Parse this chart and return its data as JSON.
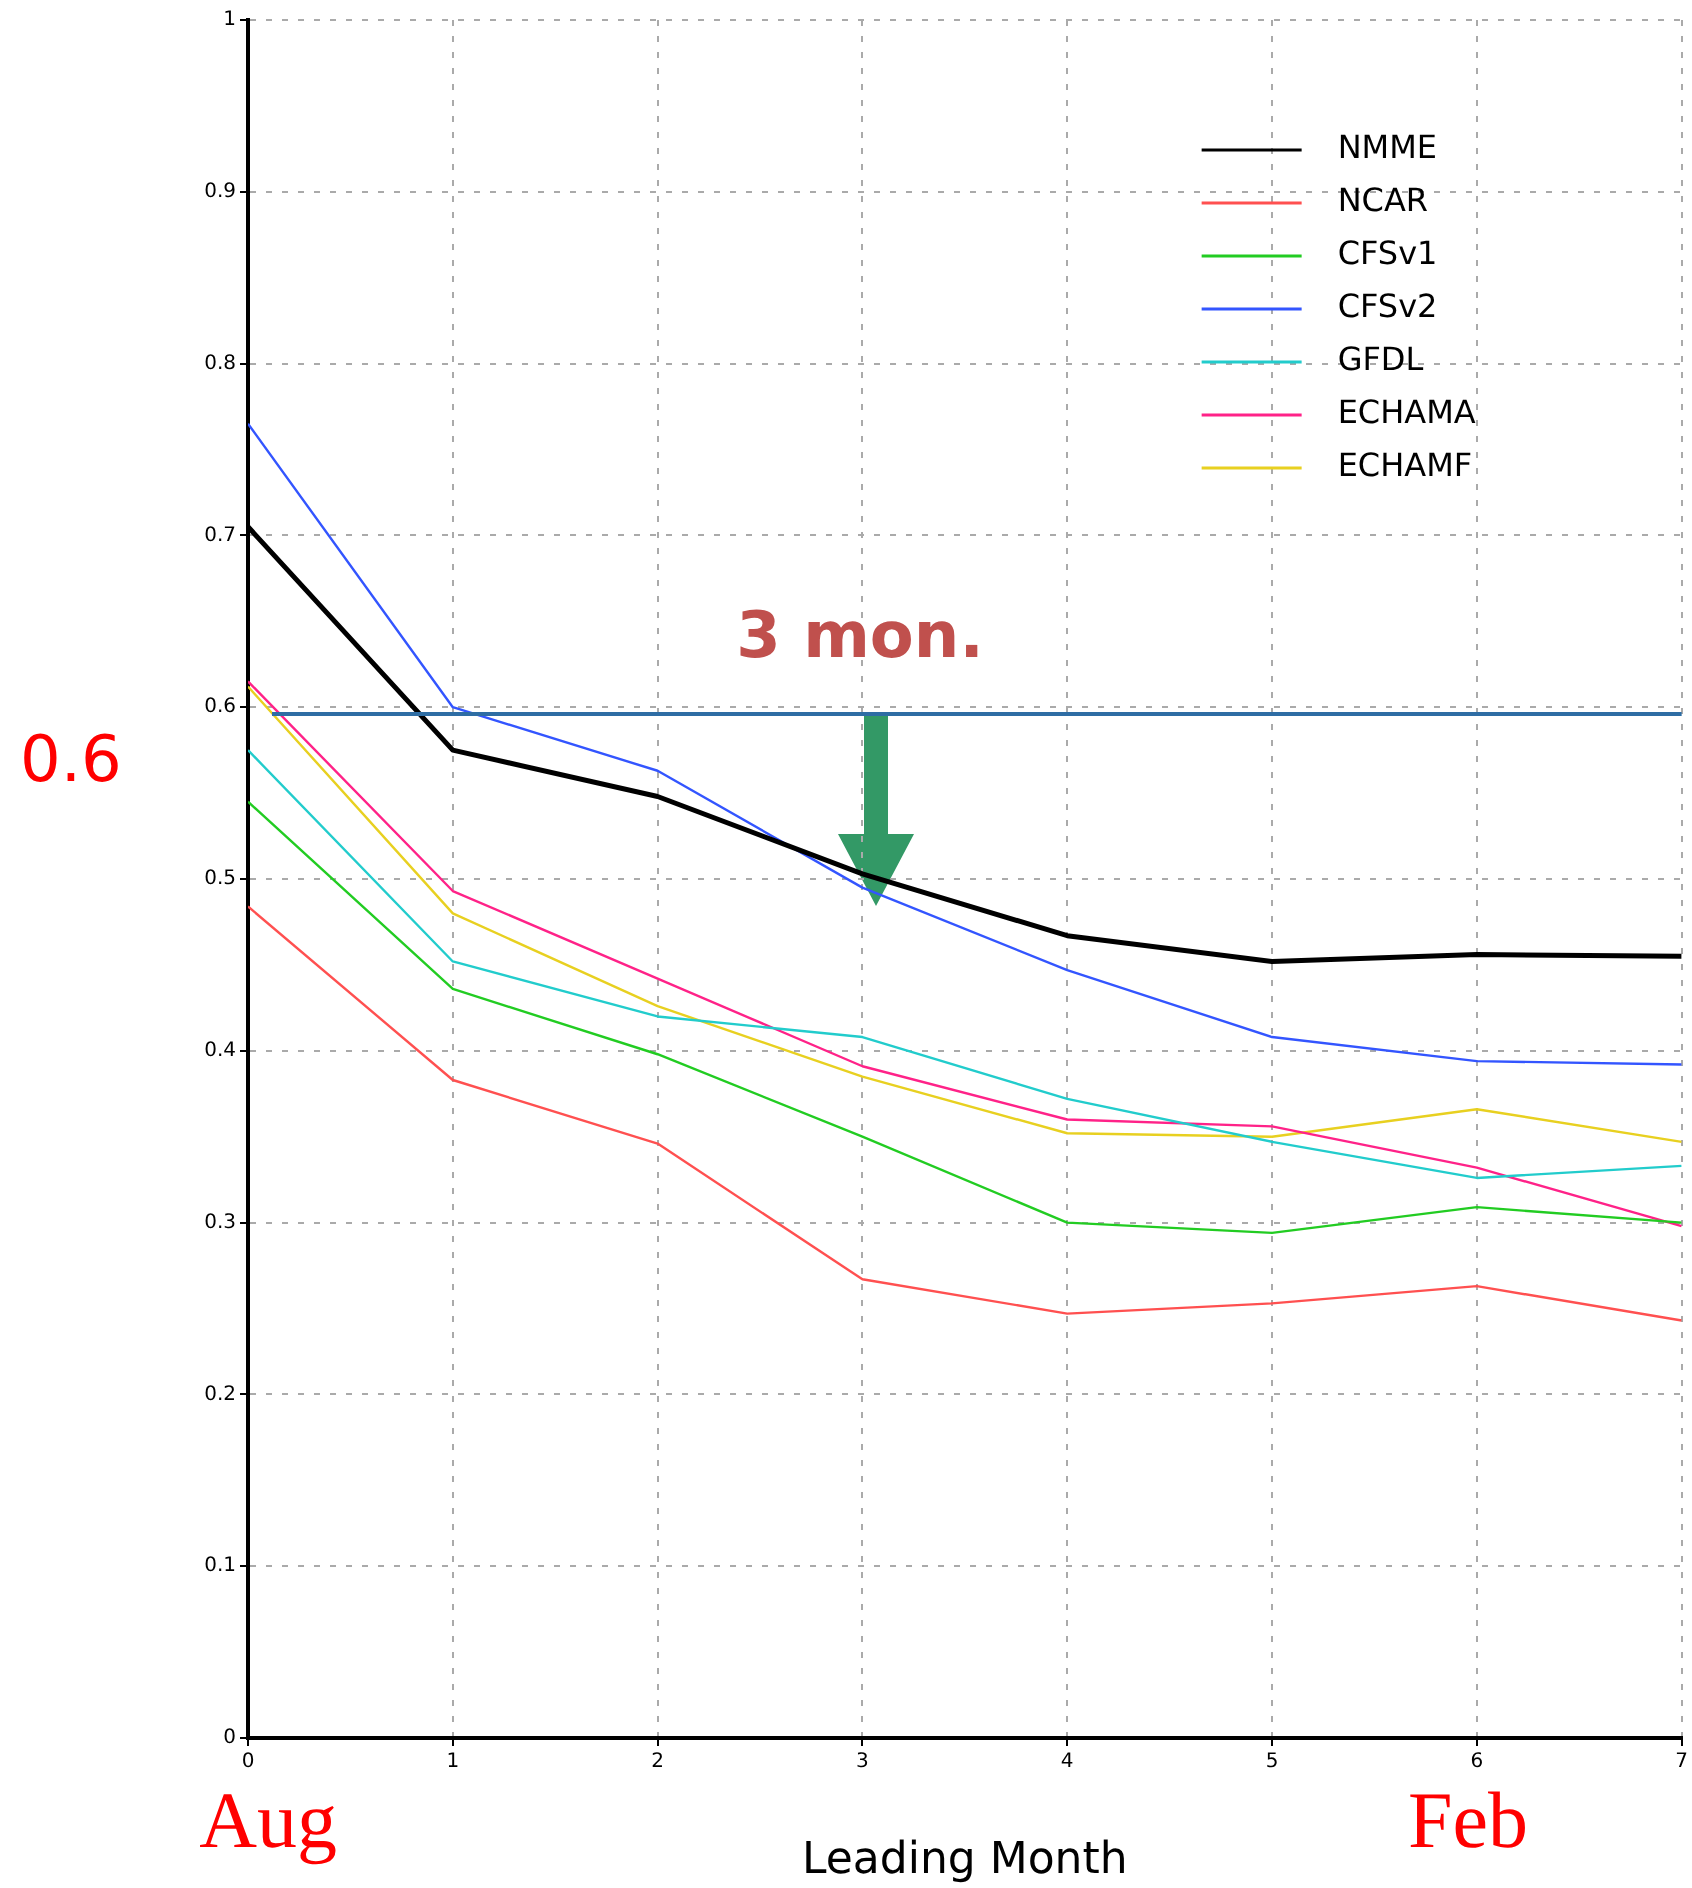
{
  "chart_data": {
    "type": "line",
    "xlabel": "Leading Month",
    "x": [
      0,
      1,
      2,
      3,
      4,
      5,
      6,
      7
    ],
    "xlim": [
      0,
      7
    ],
    "xticks": [
      0,
      1,
      2,
      3,
      4,
      5,
      6,
      7
    ],
    "ylim": [
      0,
      1
    ],
    "yticks": [
      0,
      0.1,
      0.2,
      0.3,
      0.4,
      0.5,
      0.6,
      0.7,
      0.8,
      0.9,
      1
    ],
    "grid": true,
    "legend": "top right",
    "marker": "none",
    "line_style": "solid",
    "series": [
      {
        "name": "NMME",
        "color": "#000000",
        "values": [
          0.705,
          0.575,
          0.548,
          0.503,
          0.467,
          0.452,
          0.456,
          0.455
        ]
      },
      {
        "name": "NCAR",
        "color": "#ff5050",
        "values": [
          0.484,
          0.383,
          0.346,
          0.267,
          0.247,
          0.253,
          0.263,
          0.243
        ]
      },
      {
        "name": "CFSv1",
        "color": "#22cc22",
        "values": [
          0.545,
          0.436,
          0.398,
          0.35,
          0.3,
          0.294,
          0.309,
          0.3
        ]
      },
      {
        "name": "CFSv2",
        "color": "#3355ff",
        "values": [
          0.765,
          0.6,
          0.563,
          0.495,
          0.447,
          0.408,
          0.394,
          0.392
        ]
      },
      {
        "name": "GFDL",
        "color": "#22cccc",
        "values": [
          0.575,
          0.452,
          0.42,
          0.408,
          0.372,
          0.347,
          0.326,
          0.333
        ]
      },
      {
        "name": "ECHAMA",
        "color": "#ff2288",
        "values": [
          0.615,
          0.493,
          0.442,
          0.391,
          0.36,
          0.356,
          0.332,
          0.298
        ]
      },
      {
        "name": "ECHAMF",
        "color": "#e8d020",
        "values": [
          0.612,
          0.48,
          0.426,
          0.385,
          0.352,
          0.35,
          0.366,
          0.347
        ]
      }
    ],
    "ref_lines": [
      {
        "axis": "y",
        "value": 0.596,
        "label": "0.6",
        "color": "#2e6da4"
      }
    ],
    "annotations": [
      "3 mon.",
      "Aug",
      "Feb"
    ]
  }
}
